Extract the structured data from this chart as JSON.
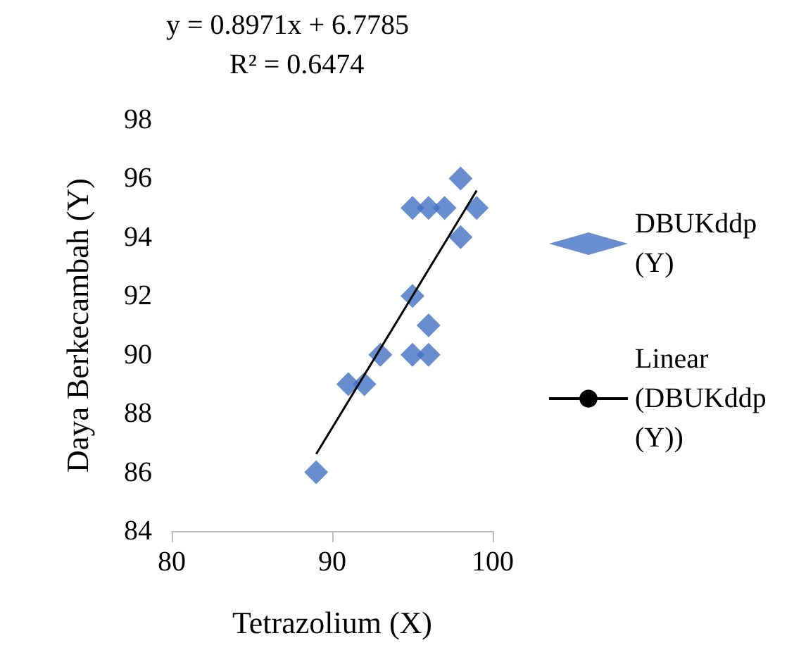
{
  "chart_data": {
    "type": "scatter",
    "xlabel": "Tetrazolium (X)",
    "ylabel": "Daya Berkecambah (Y)",
    "annotations": [
      "y = 0.8971x + 6.7785",
      "R² = 0.6474"
    ],
    "xlim": [
      80,
      100
    ],
    "xticks": [
      80,
      90,
      100
    ],
    "ylim": [
      84,
      98
    ],
    "yticks": [
      84,
      86,
      88,
      90,
      92,
      94,
      96,
      98
    ],
    "grid": false,
    "legend": "right",
    "marker": "diamond",
    "series": [
      {
        "name": "DBUKddp (Y)",
        "color": "#4472c4",
        "x": [
          89,
          91,
          92,
          93,
          95,
          96,
          96,
          95,
          95,
          96,
          97,
          98,
          98,
          99
        ],
        "values": [
          86,
          89,
          89,
          90,
          90,
          90,
          91,
          92,
          95,
          95,
          95,
          94,
          96,
          95
        ]
      },
      {
        "name": "Linear (DBUKddp (Y))",
        "type": "line",
        "color": "#000000",
        "marker": "none",
        "x": [
          89,
          99
        ],
        "values": [
          86.62,
          95.59
        ]
      }
    ]
  }
}
